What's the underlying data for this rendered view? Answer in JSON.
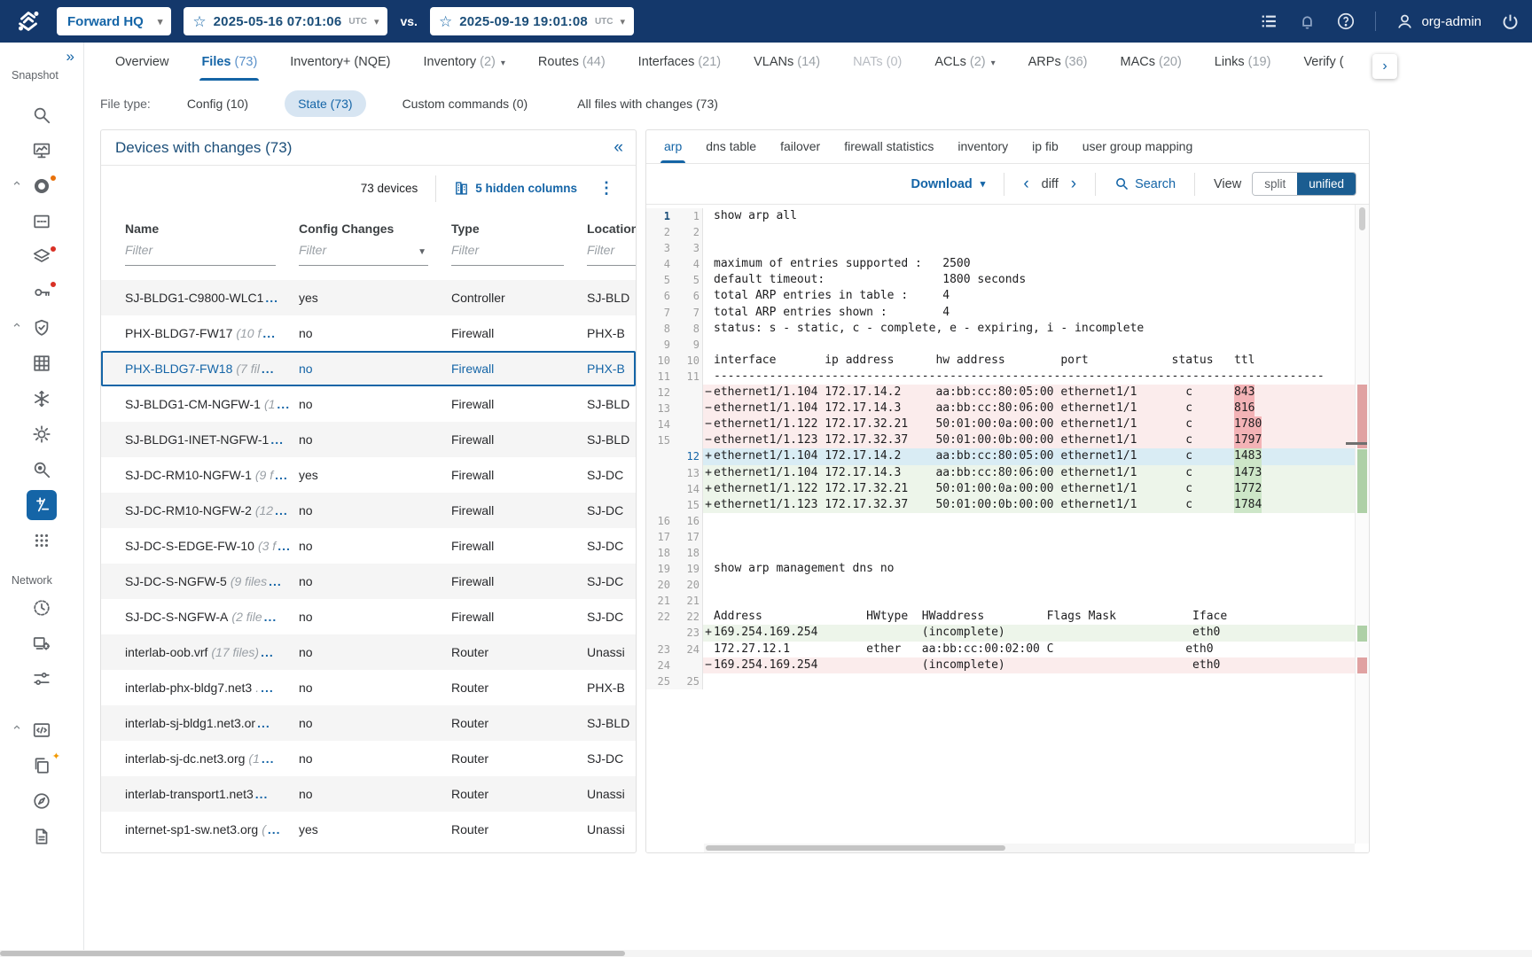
{
  "header": {
    "app_button": "Forward HQ",
    "snapshot_a": {
      "date_time": "2025-05-16  07:01:06",
      "tz": "UTC"
    },
    "vs_label": "vs.",
    "snapshot_b": {
      "date_time": "2025-09-19  19:01:08",
      "tz": "UTC"
    },
    "user": "org-admin"
  },
  "sidebar": {
    "snapshot_label": "Snapshot",
    "network_label": "Network",
    "snapshot_items": [
      {
        "icon": "search-icon"
      },
      {
        "icon": "monitor-chart-icon"
      },
      {
        "icon": "donut-icon",
        "badge": "orange",
        "group_caret": true
      },
      {
        "icon": "card-number-icon"
      },
      {
        "icon": "layers-icon",
        "badge": "red"
      },
      {
        "icon": "key-icon",
        "badge": "red"
      },
      {
        "icon": "shield-check-icon",
        "group_caret": true
      },
      {
        "icon": "grid-table-icon"
      },
      {
        "icon": "snowflake-icon"
      },
      {
        "icon": "gear-icon"
      },
      {
        "icon": "search-insight-icon"
      },
      {
        "icon": "diff-icon",
        "active": true
      },
      {
        "icon": "dots-grid-icon"
      }
    ],
    "network_items": [
      {
        "icon": "clock-globe-icon"
      },
      {
        "icon": "device-gear-icon"
      },
      {
        "icon": "tune-icon"
      }
    ],
    "bottom_items": [
      {
        "icon": "code-block-icon",
        "group_caret": true
      },
      {
        "icon": "copy-sparkle-icon",
        "badge": "sparkle"
      },
      {
        "icon": "compass-icon"
      },
      {
        "icon": "document-icon"
      }
    ]
  },
  "nav_tabs": [
    {
      "label": "Overview"
    },
    {
      "label": "Files",
      "count": "(73)",
      "active": true
    },
    {
      "label": "Inventory+ (NQE)"
    },
    {
      "label": "Inventory",
      "count": "(2)",
      "dropdown": true
    },
    {
      "label": "Routes",
      "count": "(44)"
    },
    {
      "label": "Interfaces",
      "count": "(21)"
    },
    {
      "label": "VLANs",
      "count": "(14)"
    },
    {
      "label": "NATs",
      "count": "(0)",
      "disabled": true
    },
    {
      "label": "ACLs",
      "count": "(2)",
      "dropdown": true
    },
    {
      "label": "ARPs",
      "count": "(36)"
    },
    {
      "label": "MACs",
      "count": "(20)"
    },
    {
      "label": "Links",
      "count": "(19)"
    },
    {
      "label": "Verify ("
    }
  ],
  "file_type": {
    "label": "File type:",
    "options": [
      {
        "label": "Config (10)"
      },
      {
        "label": "State (73)",
        "selected": true
      },
      {
        "label": "Custom commands (0)"
      },
      {
        "label": "All files with changes (73)"
      }
    ]
  },
  "devices_panel": {
    "title": "Devices with changes (73)",
    "count_label": "73 devices",
    "hidden_columns_label": "5 hidden columns",
    "columns": [
      "Name",
      "Config Changes",
      "Type",
      "Location"
    ],
    "filter_placeholder": "Filter",
    "rows": [
      {
        "name": "SJ-BLDG1-C9800-WLC1",
        "suffix": "",
        "config_changes": "yes",
        "type": "Controller",
        "location": "SJ-BLD"
      },
      {
        "name": "PHX-BLDG7-FW17",
        "suffix": "(10 f",
        "config_changes": "no",
        "type": "Firewall",
        "location": "PHX-B"
      },
      {
        "name": "PHX-BLDG7-FW18",
        "suffix": "(7 fil",
        "config_changes": "no",
        "type": "Firewall",
        "location": "PHX-B",
        "selected": true
      },
      {
        "name": "SJ-BLDG1-CM-NGFW-1",
        "suffix": "(1",
        "config_changes": "no",
        "type": "Firewall",
        "location": "SJ-BLD"
      },
      {
        "name": "SJ-BLDG1-INET-NGFW-1",
        "suffix": "",
        "config_changes": "no",
        "type": "Firewall",
        "location": "SJ-BLD"
      },
      {
        "name": "SJ-DC-RM10-NGFW-1",
        "suffix": "(9 f",
        "config_changes": "yes",
        "type": "Firewall",
        "location": "SJ-DC"
      },
      {
        "name": "SJ-DC-RM10-NGFW-2",
        "suffix": "(12",
        "config_changes": "no",
        "type": "Firewall",
        "location": "SJ-DC"
      },
      {
        "name": "SJ-DC-S-EDGE-FW-10",
        "suffix": "(3 f",
        "config_changes": "no",
        "type": "Firewall",
        "location": "SJ-DC"
      },
      {
        "name": "SJ-DC-S-NGFW-5",
        "suffix": "(9 files",
        "config_changes": "no",
        "type": "Firewall",
        "location": "SJ-DC"
      },
      {
        "name": "SJ-DC-S-NGFW-A",
        "suffix": "(2 file",
        "config_changes": "no",
        "type": "Firewall",
        "location": "SJ-DC"
      },
      {
        "name": "interlab-oob.vrf",
        "suffix": "(17 files)",
        "config_changes": "no",
        "type": "Router",
        "location": "Unassi"
      },
      {
        "name": "interlab-phx-bldg7.net3",
        "suffix": ".",
        "config_changes": "no",
        "type": "Router",
        "location": "PHX-B"
      },
      {
        "name": "interlab-sj-bldg1.net3.or",
        "suffix": "",
        "config_changes": "no",
        "type": "Router",
        "location": "SJ-BLD"
      },
      {
        "name": "interlab-sj-dc.net3.org",
        "suffix": "(1",
        "config_changes": "no",
        "type": "Router",
        "location": "SJ-DC"
      },
      {
        "name": "interlab-transport1.net3",
        "suffix": "",
        "config_changes": "no",
        "type": "Router",
        "location": "Unassi"
      },
      {
        "name": "internet-sp1-sw.net3.org",
        "suffix": "(",
        "config_changes": "yes",
        "type": "Router",
        "location": "Unassi"
      }
    ]
  },
  "file_viewer": {
    "tabs": [
      "arp",
      "dns table",
      "failover",
      "firewall statistics",
      "inventory",
      "ip fib",
      "user group mapping"
    ],
    "active_tab": "arp",
    "toolbar": {
      "download_label": "Download",
      "diff_label": "diff",
      "search_label": "Search",
      "view_label": "View",
      "split_label": "split",
      "unified_label": "unified",
      "view_mode": "unified"
    },
    "diff_rows": [
      {
        "o": "1",
        "n": "1",
        "t": "show arp all",
        "cur": true
      },
      {
        "o": "2",
        "n": "2",
        "t": ""
      },
      {
        "o": "3",
        "n": "3",
        "t": ""
      },
      {
        "o": "4",
        "n": "4",
        "t": "maximum of entries supported :   2500"
      },
      {
        "o": "5",
        "n": "5",
        "t": "default timeout:                 1800 seconds"
      },
      {
        "o": "6",
        "n": "6",
        "t": "total ARP entries in table :     4"
      },
      {
        "o": "7",
        "n": "7",
        "t": "total ARP entries shown :        4"
      },
      {
        "o": "8",
        "n": "8",
        "t": "status: s - static, c - complete, e - expiring, i - incomplete"
      },
      {
        "o": "9",
        "n": "9",
        "t": ""
      },
      {
        "o": "10",
        "n": "10",
        "t": "interface       ip address      hw address        port            status   ttl"
      },
      {
        "o": "11",
        "n": "11",
        "t": "----------------------------------------------------------------------------------------"
      },
      {
        "o": "12",
        "s": "−",
        "c": "del",
        "t": "ethernet1/1.104 172.17.14.2     aa:bb:cc:80:05:00 ethernet1/1       c      ",
        "hl": "843"
      },
      {
        "o": "13",
        "s": "−",
        "c": "del",
        "t": "ethernet1/1.104 172.17.14.3     aa:bb:cc:80:06:00 ethernet1/1       c      ",
        "hl": "816"
      },
      {
        "o": "14",
        "s": "−",
        "c": "del",
        "t": "ethernet1/1.122 172.17.32.21    50:01:00:0a:00:00 ethernet1/1       c      ",
        "hl": "1780"
      },
      {
        "o": "15",
        "s": "−",
        "c": "del",
        "t": "ethernet1/1.123 172.17.32.37    50:01:00:0b:00:00 ethernet1/1       c      ",
        "hl": "1797"
      },
      {
        "n": "12",
        "s": "+",
        "c": "add sel",
        "t": "ethernet1/1.104 172.17.14.2     aa:bb:cc:80:05:00 ethernet1/1       c      ",
        "hl": "1483"
      },
      {
        "n": "13",
        "s": "+",
        "c": "add",
        "t": "ethernet1/1.104 172.17.14.3     aa:bb:cc:80:06:00 ethernet1/1       c      ",
        "hl": "1473"
      },
      {
        "n": "14",
        "s": "+",
        "c": "add",
        "t": "ethernet1/1.122 172.17.32.21    50:01:00:0a:00:00 ethernet1/1       c      ",
        "hl": "1772"
      },
      {
        "n": "15",
        "s": "+",
        "c": "add",
        "t": "ethernet1/1.123 172.17.32.37    50:01:00:0b:00:00 ethernet1/1       c      ",
        "hl": "1784"
      },
      {
        "o": "16",
        "n": "16",
        "t": ""
      },
      {
        "o": "17",
        "n": "17",
        "t": ""
      },
      {
        "o": "18",
        "n": "18",
        "t": ""
      },
      {
        "o": "19",
        "n": "19",
        "t": "show arp management dns no"
      },
      {
        "o": "20",
        "n": "20",
        "t": ""
      },
      {
        "o": "21",
        "n": "21",
        "t": ""
      },
      {
        "o": "22",
        "n": "22",
        "t": "Address               HWtype  HWaddress         Flags Mask           Iface"
      },
      {
        "n": "23",
        "s": "+",
        "c": "add",
        "t": "169.254.169.254               (incomplete)                           eth0"
      },
      {
        "o": "23",
        "n": "24",
        "t": "172.27.12.1           ether   aa:bb:cc:00:02:00 C                   eth0"
      },
      {
        "o": "24",
        "s": "−",
        "c": "del",
        "t": "169.254.169.254               (incomplete)                           eth0"
      },
      {
        "o": "25",
        "n": "25",
        "t": ""
      }
    ]
  }
}
